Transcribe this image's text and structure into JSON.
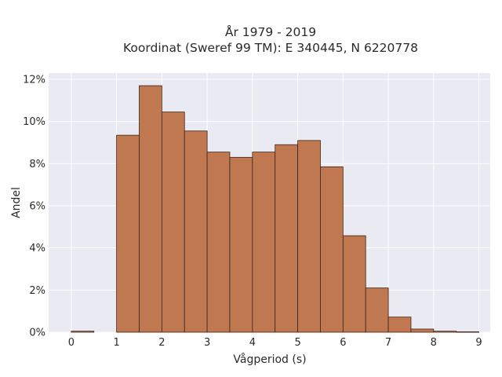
{
  "chart_data": {
    "type": "bar",
    "title_line1": "År 1979 - 2019",
    "title_line2": "Koordinat (Sweref 99 TM): E 340445, N 6220778",
    "xlabel": "Vågperiod (s)",
    "ylabel": "Andel",
    "bin_width": 0.5,
    "bins": [
      {
        "x0": 0.0,
        "value": 0.05
      },
      {
        "x0": 0.5,
        "value": 0.0
      },
      {
        "x0": 1.0,
        "value": 9.35
      },
      {
        "x0": 1.5,
        "value": 11.7
      },
      {
        "x0": 2.0,
        "value": 10.45
      },
      {
        "x0": 2.5,
        "value": 9.55
      },
      {
        "x0": 3.0,
        "value": 8.55
      },
      {
        "x0": 3.5,
        "value": 8.3
      },
      {
        "x0": 4.0,
        "value": 8.55
      },
      {
        "x0": 4.5,
        "value": 8.9
      },
      {
        "x0": 5.0,
        "value": 9.1
      },
      {
        "x0": 5.5,
        "value": 7.85
      },
      {
        "x0": 6.0,
        "value": 4.58
      },
      {
        "x0": 6.5,
        "value": 2.1
      },
      {
        "x0": 7.0,
        "value": 0.72
      },
      {
        "x0": 7.5,
        "value": 0.15
      },
      {
        "x0": 8.0,
        "value": 0.05
      },
      {
        "x0": 8.5,
        "value": 0.02
      }
    ],
    "xlim": [
      -0.5,
      9.25
    ],
    "ylim": [
      0,
      12.3
    ],
    "x_ticks": [
      0,
      1,
      2,
      3,
      4,
      5,
      6,
      7,
      8,
      9
    ],
    "y_ticks": [
      0,
      2,
      4,
      6,
      8,
      10,
      12
    ],
    "y_tick_labels": [
      "0%",
      "2%",
      "4%",
      "6%",
      "8%",
      "10%",
      "12%"
    ],
    "grid": true,
    "bar_color": "#c07850",
    "bar_edge_color": "#3d2418",
    "plot_background": "#eaeaf2",
    "grid_color": "#ffffff"
  }
}
